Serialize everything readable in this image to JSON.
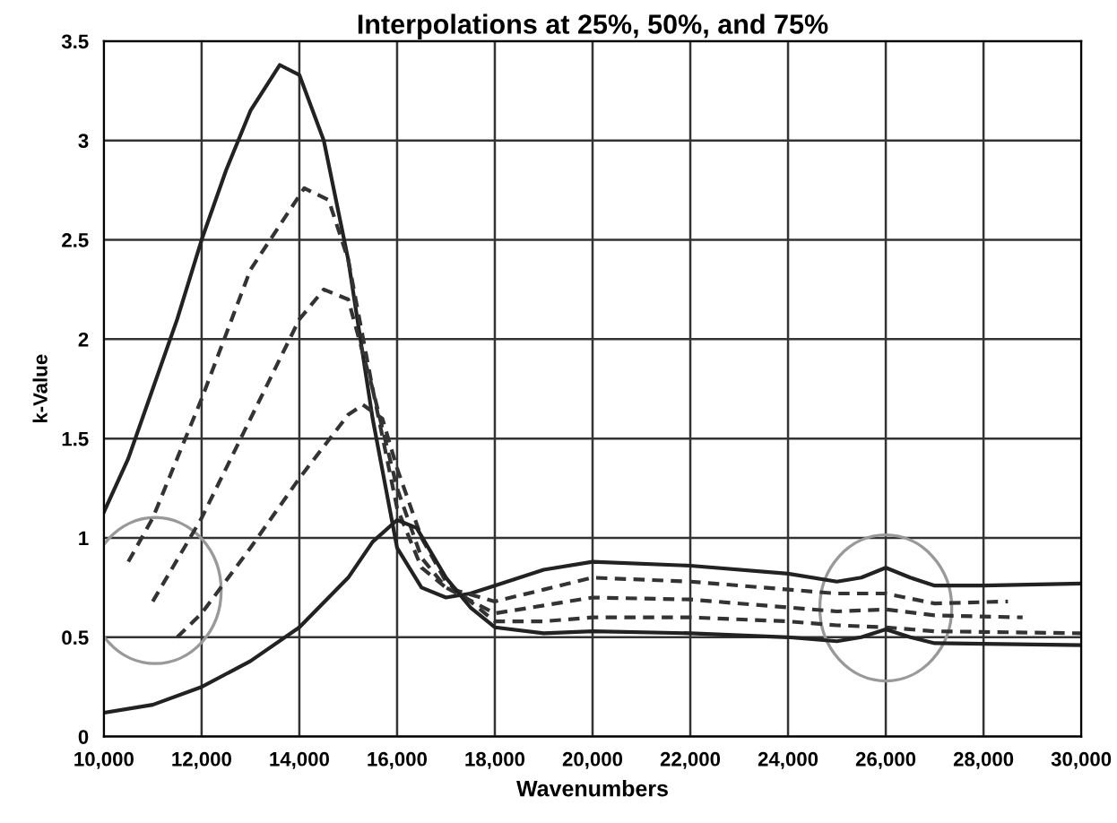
{
  "chart_data": {
    "type": "line",
    "title": "Interpolations at 25%, 50%, and 75%",
    "xlabel": "Wavenumbers",
    "ylabel": "k-Value",
    "series": [
      {
        "color": "#222222",
        "line_style": "solid",
        "x": [
          10000,
          10500,
          11000,
          11500,
          12000,
          12500,
          13000,
          13600,
          14000,
          14500,
          15000,
          15500,
          16000,
          16500,
          17000,
          17500,
          18000,
          19000,
          20000,
          22000,
          24000,
          25000,
          25500,
          26000,
          26500,
          27000,
          28000,
          30000
        ],
        "values": [
          1.13,
          1.4,
          1.75,
          2.1,
          2.5,
          2.85,
          3.15,
          3.38,
          3.33,
          3.0,
          2.4,
          1.6,
          0.95,
          0.75,
          0.7,
          0.72,
          0.76,
          0.84,
          0.88,
          0.86,
          0.82,
          0.78,
          0.8,
          0.85,
          0.8,
          0.76,
          0.76,
          0.77
        ]
      },
      {
        "color": "#333333",
        "line_style": "dashed",
        "x": [
          10500,
          11000,
          12000,
          13000,
          14100,
          14600,
          15000,
          15500,
          16000,
          16500,
          17000,
          18000,
          19000,
          20000,
          22000,
          24000,
          25000,
          26000,
          27000,
          28500
        ],
        "values": [
          0.88,
          1.1,
          1.7,
          2.35,
          2.76,
          2.7,
          2.4,
          1.75,
          1.15,
          0.85,
          0.75,
          0.68,
          0.74,
          0.8,
          0.78,
          0.74,
          0.72,
          0.72,
          0.67,
          0.68
        ]
      },
      {
        "color": "#333333",
        "line_style": "dashed",
        "x": [
          11000,
          12000,
          13000,
          14000,
          14500,
          15000,
          15500,
          16000,
          16500,
          17000,
          18000,
          19000,
          20000,
          22000,
          24000,
          25000,
          26000,
          27000,
          28800
        ],
        "values": [
          0.68,
          1.1,
          1.6,
          2.1,
          2.25,
          2.2,
          1.75,
          1.25,
          0.9,
          0.75,
          0.62,
          0.66,
          0.7,
          0.69,
          0.65,
          0.63,
          0.64,
          0.61,
          0.6
        ]
      },
      {
        "color": "#333333",
        "line_style": "dashed",
        "x": [
          11500,
          12000,
          13000,
          14000,
          15000,
          15300,
          15700,
          16000,
          16500,
          17000,
          18000,
          19000,
          20000,
          22000,
          24000,
          25000,
          26000,
          27000,
          30000
        ],
        "values": [
          0.5,
          0.62,
          0.95,
          1.3,
          1.62,
          1.67,
          1.6,
          1.35,
          1.0,
          0.78,
          0.58,
          0.58,
          0.6,
          0.6,
          0.58,
          0.56,
          0.55,
          0.53,
          0.52
        ]
      },
      {
        "color": "#222222",
        "line_style": "solid",
        "x": [
          10000,
          11000,
          12000,
          13000,
          14000,
          15000,
          15500,
          16000,
          16400,
          17000,
          17500,
          18000,
          19000,
          20000,
          22000,
          24000,
          25000,
          25500,
          26000,
          26500,
          27000,
          30000
        ],
        "values": [
          0.12,
          0.16,
          0.25,
          0.38,
          0.55,
          0.8,
          0.98,
          1.09,
          1.05,
          0.8,
          0.65,
          0.55,
          0.52,
          0.53,
          0.52,
          0.5,
          0.48,
          0.5,
          0.54,
          0.5,
          0.47,
          0.46
        ]
      }
    ],
    "xlim": [
      10000,
      30000
    ],
    "ylim": [
      0,
      3.5
    ],
    "xticks": [
      {
        "value": 10000,
        "label": "10,000"
      },
      {
        "value": 12000,
        "label": "12,000"
      },
      {
        "value": 14000,
        "label": "14,000"
      },
      {
        "value": 16000,
        "label": "16,000"
      },
      {
        "value": 18000,
        "label": "18,000"
      },
      {
        "value": 20000,
        "label": "20,000"
      },
      {
        "value": 22000,
        "label": "22,000"
      },
      {
        "value": 24000,
        "label": "24,000"
      },
      {
        "value": 26000,
        "label": "26,000"
      },
      {
        "value": 28000,
        "label": "28,000"
      },
      {
        "value": 30000,
        "label": "30,000"
      }
    ],
    "yticks": [
      0,
      0.5,
      1,
      1.5,
      2,
      2.5,
      3,
      3.5
    ],
    "grid": true,
    "legend": false,
    "marker": "none"
  }
}
